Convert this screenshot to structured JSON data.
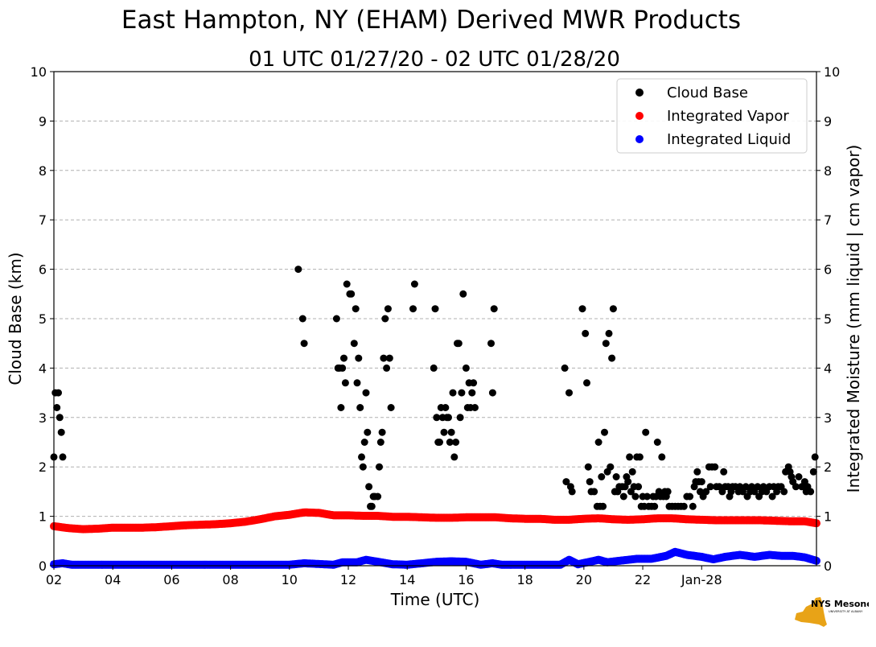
{
  "chart_data": {
    "type": "scatter",
    "title": "East Hampton, NY (EHAM) Derived MWR Products",
    "subtitle": "01 UTC 01/27/20 - 02 UTC 01/28/20",
    "xlabel": "Time (UTC)",
    "ylabel": "Cloud Base (km)",
    "ylabel_right": "Integrated Moisture (mm liquid | cm vapor)",
    "xlim": [
      2,
      27.9
    ],
    "ylim": [
      0,
      10
    ],
    "x_units": "hours since 00 UTC 01/27/20",
    "x_ticks": [
      {
        "x": 2,
        "label": "02"
      },
      {
        "x": 4,
        "label": "04"
      },
      {
        "x": 6,
        "label": "06"
      },
      {
        "x": 8,
        "label": "08"
      },
      {
        "x": 10,
        "label": "10"
      },
      {
        "x": 12,
        "label": "12"
      },
      {
        "x": 14,
        "label": "14"
      },
      {
        "x": 16,
        "label": "16"
      },
      {
        "x": 18,
        "label": "18"
      },
      {
        "x": 20,
        "label": "20"
      },
      {
        "x": 22,
        "label": "22"
      },
      {
        "x": 24,
        "label": "Jan-28"
      }
    ],
    "y_ticks": [
      0,
      1,
      2,
      3,
      4,
      5,
      6,
      7,
      8,
      9,
      10
    ],
    "grid": "horizontal-dashed",
    "legend_position": "top-right",
    "series": [
      {
        "name": "Cloud Base",
        "color": "#000000",
        "style": "points",
        "points": [
          [
            2.0,
            2.2
          ],
          [
            2.05,
            3.5
          ],
          [
            2.1,
            3.2
          ],
          [
            2.15,
            3.5
          ],
          [
            2.2,
            3.0
          ],
          [
            2.25,
            2.7
          ],
          [
            2.3,
            2.2
          ],
          [
            10.3,
            6.0
          ],
          [
            10.45,
            5.0
          ],
          [
            10.5,
            4.5
          ],
          [
            11.6,
            5.0
          ],
          [
            11.65,
            4.0
          ],
          [
            11.7,
            4.0
          ],
          [
            11.75,
            3.2
          ],
          [
            11.8,
            4.0
          ],
          [
            11.85,
            4.2
          ],
          [
            11.9,
            3.7
          ],
          [
            11.95,
            5.7
          ],
          [
            12.05,
            5.5
          ],
          [
            12.1,
            5.5
          ],
          [
            12.2,
            4.5
          ],
          [
            12.25,
            5.2
          ],
          [
            12.3,
            3.7
          ],
          [
            12.35,
            4.2
          ],
          [
            12.4,
            3.2
          ],
          [
            12.45,
            2.2
          ],
          [
            12.5,
            2.0
          ],
          [
            12.55,
            2.5
          ],
          [
            12.6,
            3.5
          ],
          [
            12.65,
            2.7
          ],
          [
            12.7,
            1.6
          ],
          [
            12.75,
            1.2
          ],
          [
            12.8,
            1.2
          ],
          [
            12.85,
            1.4
          ],
          [
            12.9,
            1.4
          ],
          [
            13.0,
            1.4
          ],
          [
            13.05,
            2.0
          ],
          [
            13.1,
            2.5
          ],
          [
            13.15,
            2.7
          ],
          [
            13.2,
            4.2
          ],
          [
            13.25,
            5.0
          ],
          [
            13.3,
            4.0
          ],
          [
            13.35,
            5.2
          ],
          [
            13.4,
            4.2
          ],
          [
            13.45,
            3.2
          ],
          [
            14.2,
            5.2
          ],
          [
            14.25,
            5.7
          ],
          [
            14.9,
            4.0
          ],
          [
            14.95,
            5.2
          ],
          [
            15.0,
            3.0
          ],
          [
            15.05,
            2.5
          ],
          [
            15.1,
            2.5
          ],
          [
            15.15,
            3.2
          ],
          [
            15.2,
            3.0
          ],
          [
            15.25,
            2.7
          ],
          [
            15.3,
            3.2
          ],
          [
            15.35,
            3.0
          ],
          [
            15.4,
            3.0
          ],
          [
            15.45,
            2.5
          ],
          [
            15.5,
            2.7
          ],
          [
            15.55,
            3.5
          ],
          [
            15.6,
            2.2
          ],
          [
            15.65,
            2.5
          ],
          [
            15.7,
            4.5
          ],
          [
            15.75,
            4.5
          ],
          [
            15.8,
            3.0
          ],
          [
            15.85,
            3.5
          ],
          [
            15.9,
            5.5
          ],
          [
            16.0,
            4.0
          ],
          [
            16.05,
            3.2
          ],
          [
            16.1,
            3.7
          ],
          [
            16.15,
            3.2
          ],
          [
            16.2,
            3.5
          ],
          [
            16.25,
            3.7
          ],
          [
            16.3,
            3.2
          ],
          [
            16.85,
            4.5
          ],
          [
            16.9,
            3.5
          ],
          [
            16.95,
            5.2
          ],
          [
            19.35,
            4.0
          ],
          [
            19.4,
            1.7
          ],
          [
            19.5,
            3.5
          ],
          [
            19.55,
            1.6
          ],
          [
            19.6,
            1.5
          ],
          [
            19.95,
            5.2
          ],
          [
            20.05,
            4.7
          ],
          [
            20.1,
            3.7
          ],
          [
            20.15,
            2.0
          ],
          [
            20.2,
            1.7
          ],
          [
            20.25,
            1.5
          ],
          [
            20.35,
            1.5
          ],
          [
            20.45,
            1.2
          ],
          [
            20.5,
            2.5
          ],
          [
            20.55,
            1.2
          ],
          [
            20.6,
            1.8
          ],
          [
            20.65,
            1.2
          ],
          [
            20.7,
            2.7
          ],
          [
            20.75,
            4.5
          ],
          [
            20.8,
            1.9
          ],
          [
            20.85,
            4.7
          ],
          [
            20.9,
            2.0
          ],
          [
            20.95,
            4.2
          ],
          [
            21.0,
            5.2
          ],
          [
            21.05,
            1.5
          ],
          [
            21.1,
            1.8
          ],
          [
            21.15,
            1.5
          ],
          [
            21.2,
            1.6
          ],
          [
            21.3,
            1.6
          ],
          [
            21.35,
            1.4
          ],
          [
            21.4,
            1.6
          ],
          [
            21.45,
            1.8
          ],
          [
            21.5,
            1.7
          ],
          [
            21.55,
            2.2
          ],
          [
            21.6,
            1.5
          ],
          [
            21.65,
            1.9
          ],
          [
            21.7,
            1.6
          ],
          [
            21.75,
            1.4
          ],
          [
            21.8,
            2.2
          ],
          [
            21.85,
            1.6
          ],
          [
            21.9,
            2.2
          ],
          [
            21.95,
            1.2
          ],
          [
            22.0,
            1.4
          ],
          [
            22.05,
            1.2
          ],
          [
            22.1,
            2.7
          ],
          [
            22.15,
            1.4
          ],
          [
            22.2,
            1.2
          ],
          [
            22.3,
            1.2
          ],
          [
            22.35,
            1.4
          ],
          [
            22.4,
            1.2
          ],
          [
            22.45,
            1.4
          ],
          [
            22.5,
            2.5
          ],
          [
            22.55,
            1.5
          ],
          [
            22.6,
            1.4
          ],
          [
            22.65,
            2.2
          ],
          [
            22.7,
            1.4
          ],
          [
            22.75,
            1.5
          ],
          [
            22.8,
            1.4
          ],
          [
            22.85,
            1.5
          ],
          [
            22.9,
            1.2
          ],
          [
            23.0,
            1.2
          ],
          [
            23.1,
            1.2
          ],
          [
            23.2,
            1.2
          ],
          [
            23.3,
            1.2
          ],
          [
            23.4,
            1.2
          ],
          [
            23.5,
            1.4
          ],
          [
            23.6,
            1.4
          ],
          [
            23.7,
            1.2
          ],
          [
            23.75,
            1.6
          ],
          [
            23.8,
            1.7
          ],
          [
            23.85,
            1.9
          ],
          [
            23.9,
            1.7
          ],
          [
            23.95,
            1.5
          ],
          [
            24.0,
            1.7
          ],
          [
            24.05,
            1.4
          ],
          [
            24.15,
            1.5
          ],
          [
            24.25,
            2.0
          ],
          [
            24.3,
            1.6
          ],
          [
            24.35,
            2.0
          ],
          [
            24.45,
            2.0
          ],
          [
            24.5,
            1.6
          ],
          [
            24.6,
            1.6
          ],
          [
            24.7,
            1.5
          ],
          [
            24.75,
            1.9
          ],
          [
            24.8,
            1.6
          ],
          [
            24.9,
            1.6
          ],
          [
            24.95,
            1.4
          ],
          [
            25.0,
            1.5
          ],
          [
            25.05,
            1.6
          ],
          [
            25.15,
            1.6
          ],
          [
            25.25,
            1.5
          ],
          [
            25.3,
            1.6
          ],
          [
            25.4,
            1.5
          ],
          [
            25.5,
            1.6
          ],
          [
            25.55,
            1.4
          ],
          [
            25.65,
            1.5
          ],
          [
            25.7,
            1.6
          ],
          [
            25.8,
            1.5
          ],
          [
            25.9,
            1.6
          ],
          [
            25.95,
            1.4
          ],
          [
            26.05,
            1.5
          ],
          [
            26.1,
            1.6
          ],
          [
            26.2,
            1.5
          ],
          [
            26.3,
            1.6
          ],
          [
            26.4,
            1.4
          ],
          [
            26.45,
            1.6
          ],
          [
            26.55,
            1.5
          ],
          [
            26.6,
            1.6
          ],
          [
            26.7,
            1.6
          ],
          [
            26.8,
            1.5
          ],
          [
            26.85,
            1.9
          ],
          [
            26.95,
            2.0
          ],
          [
            27.0,
            1.9
          ],
          [
            27.05,
            1.8
          ],
          [
            27.1,
            1.7
          ],
          [
            27.2,
            1.6
          ],
          [
            27.3,
            1.8
          ],
          [
            27.4,
            1.6
          ],
          [
            27.5,
            1.7
          ],
          [
            27.55,
            1.5
          ],
          [
            27.6,
            1.6
          ],
          [
            27.7,
            1.5
          ],
          [
            27.8,
            1.9
          ],
          [
            27.85,
            2.2
          ]
        ]
      },
      {
        "name": "Integrated Vapor",
        "color": "#ff0000",
        "style": "dense",
        "profile": [
          [
            2.0,
            0.8
          ],
          [
            2.5,
            0.76
          ],
          [
            3.0,
            0.74
          ],
          [
            3.5,
            0.75
          ],
          [
            4.0,
            0.77
          ],
          [
            4.5,
            0.77
          ],
          [
            5.0,
            0.77
          ],
          [
            5.5,
            0.78
          ],
          [
            6.0,
            0.8
          ],
          [
            6.5,
            0.82
          ],
          [
            7.0,
            0.83
          ],
          [
            7.5,
            0.84
          ],
          [
            8.0,
            0.86
          ],
          [
            8.5,
            0.89
          ],
          [
            9.0,
            0.94
          ],
          [
            9.5,
            1.0
          ],
          [
            10.0,
            1.03
          ],
          [
            10.5,
            1.08
          ],
          [
            11.0,
            1.07
          ],
          [
            11.5,
            1.02
          ],
          [
            12.0,
            1.02
          ],
          [
            12.5,
            1.01
          ],
          [
            13.0,
            1.01
          ],
          [
            13.5,
            0.99
          ],
          [
            14.0,
            0.99
          ],
          [
            14.5,
            0.98
          ],
          [
            15.0,
            0.97
          ],
          [
            15.5,
            0.97
          ],
          [
            16.0,
            0.98
          ],
          [
            16.5,
            0.98
          ],
          [
            17.0,
            0.98
          ],
          [
            17.5,
            0.96
          ],
          [
            18.0,
            0.95
          ],
          [
            18.5,
            0.95
          ],
          [
            19.0,
            0.93
          ],
          [
            19.5,
            0.93
          ],
          [
            20.0,
            0.95
          ],
          [
            20.5,
            0.96
          ],
          [
            21.0,
            0.94
          ],
          [
            21.5,
            0.93
          ],
          [
            22.0,
            0.94
          ],
          [
            22.5,
            0.96
          ],
          [
            23.0,
            0.96
          ],
          [
            23.5,
            0.94
          ],
          [
            24.0,
            0.93
          ],
          [
            24.5,
            0.92
          ],
          [
            25.0,
            0.92
          ],
          [
            25.5,
            0.92
          ],
          [
            26.0,
            0.92
          ],
          [
            26.5,
            0.91
          ],
          [
            27.0,
            0.9
          ],
          [
            27.5,
            0.9
          ],
          [
            27.9,
            0.86
          ]
        ]
      },
      {
        "name": "Integrated Liquid",
        "color": "#0000ff",
        "style": "dense",
        "profile": [
          [
            2.0,
            0.03
          ],
          [
            2.3,
            0.05
          ],
          [
            2.6,
            0.02
          ],
          [
            4.0,
            0.02
          ],
          [
            10.0,
            0.02
          ],
          [
            10.5,
            0.05
          ],
          [
            11.5,
            0.02
          ],
          [
            11.8,
            0.07
          ],
          [
            12.3,
            0.07
          ],
          [
            12.6,
            0.12
          ],
          [
            13.0,
            0.08
          ],
          [
            13.5,
            0.03
          ],
          [
            14.0,
            0.02
          ],
          [
            15.0,
            0.08
          ],
          [
            15.5,
            0.09
          ],
          [
            16.0,
            0.08
          ],
          [
            16.5,
            0.02
          ],
          [
            16.9,
            0.05
          ],
          [
            17.2,
            0.02
          ],
          [
            19.2,
            0.02
          ],
          [
            19.5,
            0.12
          ],
          [
            19.8,
            0.03
          ],
          [
            20.2,
            0.08
          ],
          [
            20.5,
            0.12
          ],
          [
            20.8,
            0.07
          ],
          [
            21.2,
            0.1
          ],
          [
            21.8,
            0.14
          ],
          [
            22.3,
            0.14
          ],
          [
            22.8,
            0.2
          ],
          [
            23.1,
            0.28
          ],
          [
            23.5,
            0.22
          ],
          [
            24.0,
            0.18
          ],
          [
            24.4,
            0.13
          ],
          [
            24.8,
            0.18
          ],
          [
            25.3,
            0.22
          ],
          [
            25.8,
            0.18
          ],
          [
            26.3,
            0.22
          ],
          [
            26.7,
            0.2
          ],
          [
            27.1,
            0.2
          ],
          [
            27.5,
            0.17
          ],
          [
            27.9,
            0.1
          ]
        ]
      }
    ]
  },
  "logo": {
    "name": "NYS Mesonet",
    "sub": "UNIVERSITY AT ALBANY",
    "nys_color": "#e8a317",
    "text_color": "#4b2e83"
  }
}
